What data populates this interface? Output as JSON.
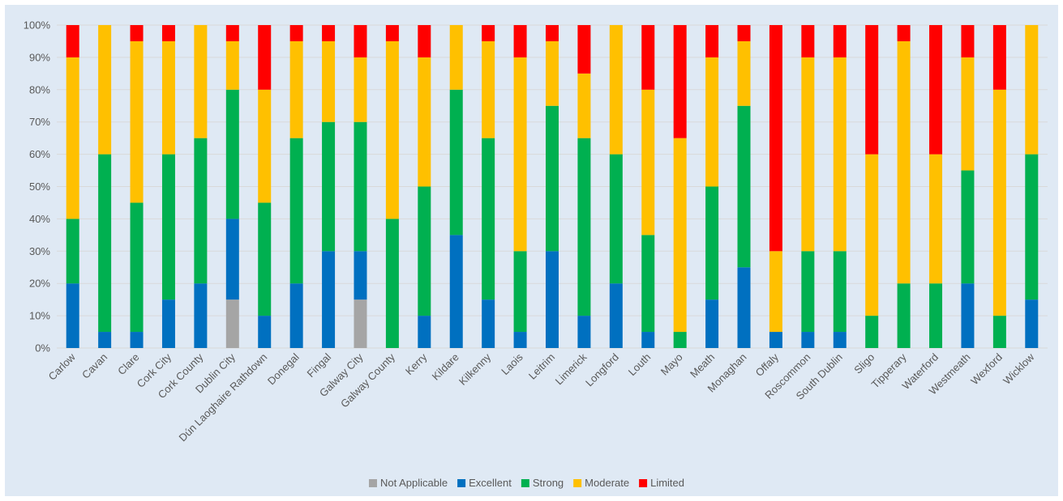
{
  "chart_data": {
    "type": "bar",
    "stacked": true,
    "percent_stacked": true,
    "title": "",
    "xlabel": "",
    "ylabel": "",
    "ylim": [
      0,
      100
    ],
    "y_ticks": [
      "0%",
      "10%",
      "20%",
      "30%",
      "40%",
      "50%",
      "60%",
      "70%",
      "80%",
      "90%",
      "100%"
    ],
    "grid": true,
    "legend_position": "bottom",
    "categories": [
      "Carlow",
      "Cavan",
      "Clare",
      "Cork City",
      "Cork County",
      "Dublin City",
      "Dún Laoghaire Rathdown",
      "Donegal",
      "Fingal",
      "Galway City",
      "Galway County",
      "Kerry",
      "Kildare",
      "Kilkenny",
      "Laois",
      "Leitrim",
      "Limerick",
      "Longford",
      "Louth",
      "Mayo",
      "Meath",
      "Monaghan",
      "Offaly",
      "Roscommon",
      "South Dublin",
      "Sligo",
      "Tipperary",
      "Waterford",
      "Westmeath",
      "Wexford",
      "Wicklow"
    ],
    "series": [
      {
        "name": "Not Applicable",
        "color": "#a5a5a5",
        "values": [
          0,
          0,
          0,
          0,
          0,
          15,
          0,
          0,
          0,
          15,
          0,
          0,
          0,
          0,
          0,
          0,
          0,
          0,
          0,
          0,
          0,
          0,
          0,
          0,
          0,
          0,
          0,
          0,
          0,
          0,
          0
        ]
      },
      {
        "name": "Excellent",
        "color": "#0070c0",
        "values": [
          20,
          5,
          5,
          15,
          20,
          25,
          10,
          20,
          30,
          15,
          0,
          10,
          35,
          15,
          5,
          30,
          10,
          20,
          5,
          0,
          15,
          25,
          5,
          5,
          5,
          0,
          0,
          0,
          20,
          0,
          15
        ]
      },
      {
        "name": "Strong",
        "color": "#00b050",
        "values": [
          20,
          55,
          40,
          45,
          45,
          40,
          35,
          45,
          40,
          40,
          40,
          40,
          45,
          50,
          25,
          45,
          55,
          40,
          30,
          5,
          35,
          50,
          0,
          25,
          25,
          10,
          20,
          20,
          35,
          10,
          45
        ]
      },
      {
        "name": "Moderate",
        "color": "#ffc000",
        "values": [
          50,
          40,
          50,
          35,
          35,
          15,
          35,
          30,
          25,
          20,
          55,
          40,
          20,
          30,
          60,
          20,
          20,
          40,
          45,
          60,
          40,
          20,
          25,
          60,
          60,
          50,
          75,
          40,
          35,
          70,
          40
        ]
      },
      {
        "name": "Limited",
        "color": "#ff0000",
        "values": [
          10,
          0,
          5,
          5,
          0,
          5,
          20,
          5,
          5,
          10,
          5,
          10,
          0,
          5,
          10,
          5,
          15,
          0,
          20,
          35,
          10,
          5,
          70,
          10,
          10,
          40,
          5,
          40,
          10,
          20,
          0
        ]
      }
    ]
  }
}
